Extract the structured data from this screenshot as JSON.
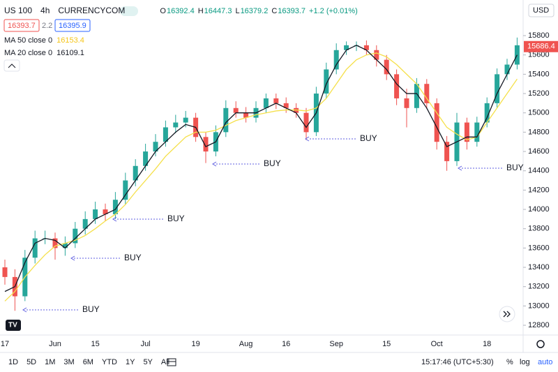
{
  "header": {
    "symbol": "US 100",
    "interval": "4h",
    "source": "CURRENCYCOM",
    "ohlc": [
      {
        "key": "O",
        "value": "16392.4"
      },
      {
        "key": "H",
        "value": "16447.3"
      },
      {
        "key": "L",
        "value": "16379.2"
      },
      {
        "key": "C",
        "value": "16393.7"
      }
    ],
    "change": "+1.2 (+0.01%)",
    "sell": "16393.7",
    "spread": "2.2",
    "buy": "16395.9",
    "indicators": [
      {
        "name": "MA 50 close 0",
        "value": "16153.4"
      },
      {
        "name": "MA 20 close 0",
        "value": "16109.1"
      }
    ]
  },
  "toolbar": {
    "ranges": [
      "1D",
      "5D",
      "1M",
      "3M",
      "6M",
      "YTD",
      "1Y",
      "5Y",
      "All"
    ],
    "time": "15:17:46 (UTC+5:30)",
    "options": [
      "%",
      "log",
      "auto"
    ]
  },
  "currency": "USD",
  "chart_data": {
    "type": "candlestick",
    "categories": [
      "17",
      null,
      null,
      null,
      null,
      "Jun",
      null,
      null,
      null,
      "15",
      null,
      null,
      null,
      null,
      "Jul",
      null,
      null,
      null,
      null,
      "19",
      null,
      null,
      null,
      null,
      "Aug",
      null,
      null,
      null,
      "16",
      null,
      null,
      null,
      null,
      "Sep",
      null,
      null,
      null,
      null,
      "15",
      null,
      null,
      null,
      null,
      "Oct",
      null,
      null,
      null,
      null,
      "18",
      null,
      null,
      null
    ],
    "open": [
      13400,
      13300,
      13100,
      13500,
      13700,
      13700,
      13600,
      13650,
      13800,
      13900,
      14000,
      13950,
      14100,
      14300,
      14450,
      14600,
      14700,
      14850,
      14900,
      14950,
      14750,
      14600,
      14800,
      15050,
      15000,
      14950,
      15050,
      15150,
      15100,
      15050,
      15000,
      14800,
      15200,
      15450,
      15650,
      15700,
      15700,
      15650,
      15550,
      15400,
      15150,
      15050,
      15300,
      15100,
      14700,
      14500,
      14900,
      14700,
      14900,
      15100,
      15400,
      15500
    ],
    "high": [
      13480,
      13380,
      13580,
      13780,
      13780,
      13760,
      13720,
      13870,
      13980,
      14080,
      14060,
      14180,
      14380,
      14520,
      14680,
      14780,
      14920,
      14980,
      15020,
      15000,
      14800,
      14870,
      15130,
      15120,
      15060,
      15120,
      15200,
      15200,
      15160,
      15100,
      15050,
      15270,
      15520,
      15720,
      15740,
      15740,
      15750,
      15700,
      15600,
      15450,
      15250,
      15360,
      15350,
      15150,
      14760,
      15000,
      14950,
      14960,
      15160,
      15460,
      15560,
      15780
    ],
    "low": [
      13220,
      12950,
      13050,
      13440,
      13640,
      13480,
      13520,
      13600,
      13740,
      13850,
      13880,
      13900,
      14050,
      14240,
      14400,
      14550,
      14650,
      14790,
      14850,
      14700,
      14480,
      14550,
      14750,
      14950,
      14900,
      14900,
      15000,
      15040,
      15000,
      14950,
      14720,
      14760,
      15150,
      15400,
      15600,
      15640,
      15600,
      15480,
      15340,
      15080,
      14850,
      15000,
      15040,
      14620,
      14400,
      14450,
      14620,
      14650,
      14850,
      15050,
      15340,
      15450
    ],
    "close": [
      13300,
      13100,
      13500,
      13700,
      13700,
      13600,
      13650,
      13800,
      13900,
      14000,
      13950,
      14100,
      14300,
      14450,
      14600,
      14700,
      14850,
      14900,
      14950,
      14750,
      14600,
      14800,
      15050,
      15000,
      14950,
      15050,
      15150,
      15100,
      15050,
      15000,
      14800,
      15200,
      15450,
      15650,
      15700,
      15700,
      15650,
      15550,
      15400,
      15150,
      15050,
      15300,
      15100,
      14700,
      14500,
      14900,
      14700,
      14900,
      15100,
      15400,
      15500,
      15700
    ],
    "up_color": "#26a69a",
    "down_color": "#ef5350",
    "series": [
      {
        "name": "MA 50 close 0",
        "color": "#f5e04a",
        "values": [
          13050,
          13150,
          13300,
          13420,
          13530,
          13620,
          13650,
          13680,
          13730,
          13800,
          13880,
          13950,
          14050,
          14180,
          14300,
          14420,
          14550,
          14650,
          14750,
          14800,
          14800,
          14820,
          14870,
          14920,
          14950,
          14980,
          15000,
          15020,
          15030,
          15030,
          15020,
          15050,
          15150,
          15300,
          15450,
          15550,
          15600,
          15620,
          15580,
          15500,
          15400,
          15300,
          15150,
          15000,
          14850,
          14780,
          14720,
          14750,
          14900,
          15050,
          15200,
          15350
        ]
      },
      {
        "name": "MA 20 close 0",
        "color": "#131722",
        "values": [
          13150,
          13200,
          13450,
          13650,
          13700,
          13680,
          13600,
          13700,
          13800,
          13900,
          13950,
          14000,
          14150,
          14300,
          14450,
          14600,
          14700,
          14800,
          14880,
          14850,
          14650,
          14700,
          14900,
          15000,
          15000,
          15000,
          15050,
          15100,
          15050,
          15000,
          14850,
          15000,
          15300,
          15500,
          15650,
          15700,
          15650,
          15550,
          15450,
          15300,
          15200,
          15200,
          15050,
          14850,
          14650,
          14700,
          14750,
          14750,
          14950,
          15200,
          15400,
          15600
        ]
      }
    ],
    "annotations": [
      "BUY",
      "BUY",
      "BUY",
      "BUY",
      "BUY",
      "BUY"
    ],
    "last_price": 15686.4,
    "ylim": [
      12699,
      16169
    ],
    "yticks": [
      12800,
      13000,
      13200,
      13400,
      13600,
      13800,
      14000,
      14200,
      14400,
      14600,
      14800,
      15000,
      15200,
      15400,
      15600,
      15800
    ]
  }
}
